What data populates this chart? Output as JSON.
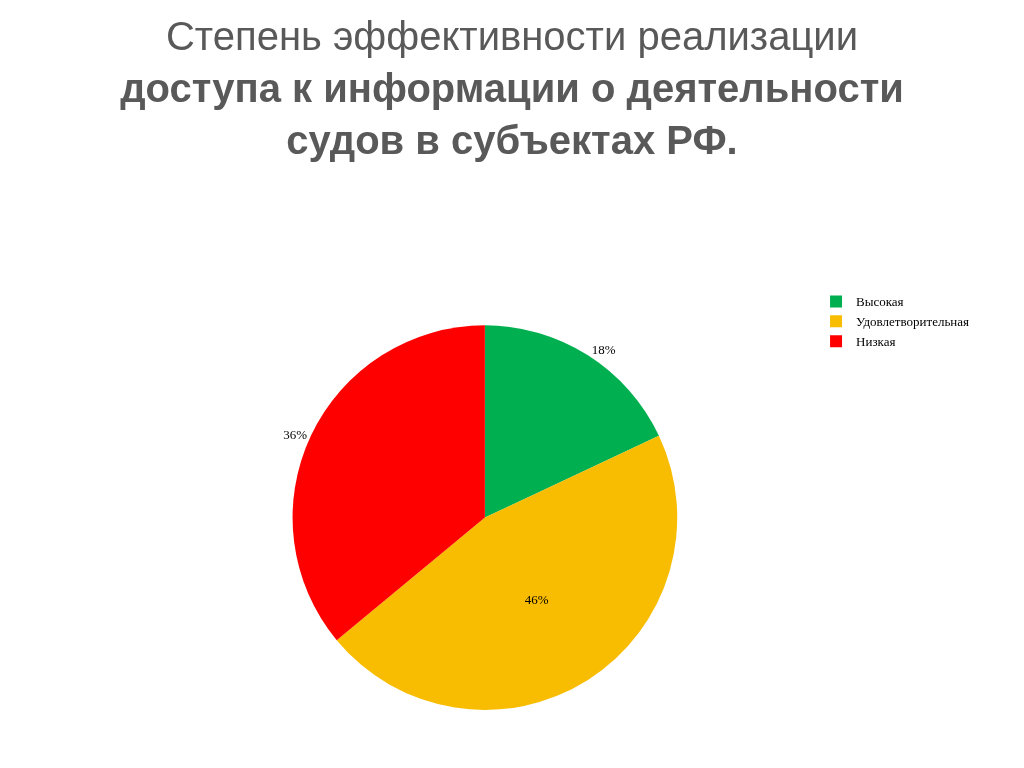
{
  "chart_data": {
    "type": "pie",
    "title": "Степень эффективности реализации",
    "subtitle": "доступа к информации о деятельности судов в субъектах РФ.",
    "categories": [
      "Высокая",
      "Удовлетворительная",
      "Низкая"
    ],
    "values": [
      18,
      46,
      36
    ],
    "value_labels": [
      "18%",
      "46%",
      "36%"
    ],
    "colors": [
      "#00b050",
      "#f8bc00",
      "#ff0000"
    ],
    "legend": "top right"
  }
}
